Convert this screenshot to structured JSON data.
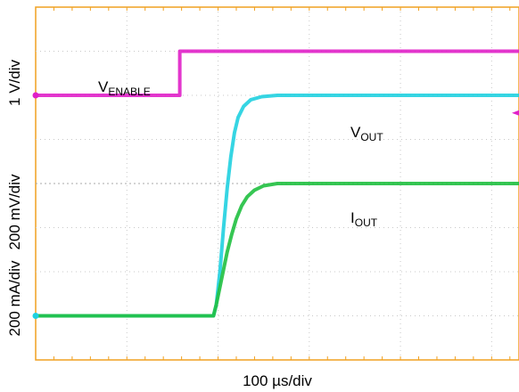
{
  "chart_data": {
    "type": "line",
    "title": "",
    "xlabel": "100 µs/div",
    "ylabels": [
      "1 V/div",
      "200 mV/div",
      "200 mA/div"
    ],
    "x_unit": "µs",
    "x_divisions": 5.3,
    "y_divisions": 8,
    "grid": true,
    "xlim": [
      0,
      530
    ],
    "series": [
      {
        "name": "VENABLE",
        "label_main": "V",
        "label_sub": "ENABLE",
        "color": "#e020c8",
        "baseline_div": 6.0,
        "x": [
          0,
          158,
          158,
          530
        ],
        "div": [
          6.0,
          6.0,
          7.0,
          7.0
        ]
      },
      {
        "name": "VOUT",
        "label_main": "V",
        "label_sub": "OUT",
        "color": "#20d0e0",
        "baseline_div": 1.0,
        "x": [
          0,
          195,
          198,
          202,
          206,
          210,
          214,
          218,
          222,
          228,
          236,
          248,
          265,
          530
        ],
        "div": [
          1.0,
          1.0,
          1.25,
          2.0,
          3.0,
          3.9,
          4.6,
          5.15,
          5.5,
          5.75,
          5.9,
          5.97,
          6.0,
          6.0
        ]
      },
      {
        "name": "IOUT",
        "label_main": "I",
        "label_sub": "OUT",
        "color": "#20c040",
        "x": [
          0,
          195,
          198,
          202,
          206,
          210,
          215,
          220,
          226,
          232,
          240,
          250,
          265,
          530
        ],
        "div": [
          1.0,
          1.0,
          1.25,
          1.65,
          2.05,
          2.45,
          2.85,
          3.2,
          3.5,
          3.7,
          3.85,
          3.95,
          4.0,
          4.0
        ]
      }
    ]
  },
  "colors": {
    "frame": "#f0a020",
    "grid": "#c8c8c8"
  }
}
